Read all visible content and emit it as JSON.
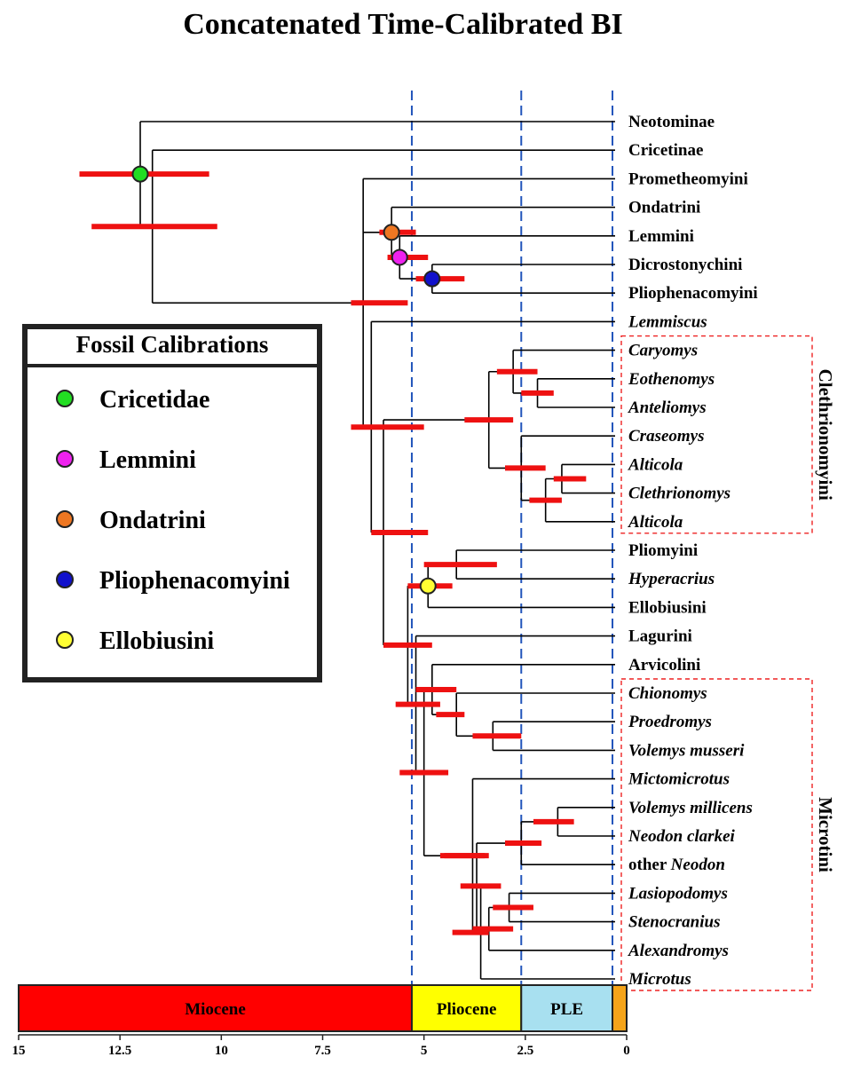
{
  "title": "Concatenated Time-Calibrated BI",
  "taxa": [
    {
      "label": "Neotominae",
      "italic": false
    },
    {
      "label": "Cricetinae",
      "italic": false
    },
    {
      "label": "Prometheomyini",
      "italic": false
    },
    {
      "label": "Ondatrini",
      "italic": false
    },
    {
      "label": "Lemmini",
      "italic": false
    },
    {
      "label": "Dicrostonychini",
      "italic": false
    },
    {
      "label": "Pliophenacomyini",
      "italic": false
    },
    {
      "label": "Lemmiscus",
      "italic": true
    },
    {
      "label": "Caryomys",
      "italic": true
    },
    {
      "label": "Eothenomys",
      "italic": true
    },
    {
      "label": "Anteliomys",
      "italic": true
    },
    {
      "label": "Craseomys",
      "italic": true
    },
    {
      "label": "Alticola",
      "italic": true
    },
    {
      "label": "Clethrionomys",
      "italic": true
    },
    {
      "label": "Alticola",
      "italic": true
    },
    {
      "label": "Pliomyini",
      "italic": false
    },
    {
      "label": "Hyperacrius",
      "italic": true
    },
    {
      "label": "Ellobiusini",
      "italic": false
    },
    {
      "label": "Lagurini",
      "italic": false
    },
    {
      "label": "Arvicolini",
      "italic": false
    },
    {
      "label": "Chionomys",
      "italic": true
    },
    {
      "label": "Proedromys",
      "italic": true
    },
    {
      "label": "Volemys musseri",
      "italic": true
    },
    {
      "label": "Mictomicrotus",
      "italic": true
    },
    {
      "label": "Volemys millicens",
      "italic": true
    },
    {
      "label": "Neodon clarkei",
      "italic": true
    },
    {
      "prefix": "other ",
      "label": "Neodon",
      "italic": true
    },
    {
      "label": "Lasiopodomys",
      "italic": true
    },
    {
      "label": "Stenocranius",
      "italic": true
    },
    {
      "label": "Alexandromys",
      "italic": true
    },
    {
      "label": "Microtus",
      "italic": true
    }
  ],
  "clades": [
    {
      "label": "Clethrionomyini",
      "first_tip": 8,
      "last_tip": 14
    },
    {
      "label": "Microtini",
      "first_tip": 20,
      "last_tip": 30
    }
  ],
  "legend": {
    "title": "Fossil Calibrations",
    "items": [
      {
        "label": "Cricetidae",
        "color": "#22dd22"
      },
      {
        "label": "Lemmini",
        "color": "#ee22ee"
      },
      {
        "label": "Ondatrini",
        "color": "#ee7722"
      },
      {
        "label": "Pliophenacomyini",
        "color": "#1111cc"
      },
      {
        "label": "Ellobiusini",
        "color": "#ffff33"
      }
    ]
  },
  "time_axis": {
    "unit": "Ma",
    "domain": [
      15,
      0
    ],
    "ticks": [
      15,
      12.5,
      10,
      7.5,
      5,
      2.5,
      0
    ],
    "tick_labels": [
      "15",
      "12.5",
      "10",
      "7.5",
      "5",
      "2.5",
      "0"
    ],
    "reference_lines_at": [
      5.3,
      2.6,
      0.35
    ]
  },
  "epochs": [
    {
      "label": "Miocene",
      "start": 15,
      "end": 5.3,
      "color": "#ff0000"
    },
    {
      "label": "Pliocene",
      "start": 5.3,
      "end": 2.6,
      "color": "#ffff00"
    },
    {
      "label": "PLE",
      "start": 2.6,
      "end": 0.35,
      "color": "#a8e0f0"
    },
    {
      "label": "",
      "start": 0.35,
      "end": 0,
      "color": "#f5a41a"
    }
  ],
  "colors": {
    "branch": "#000000",
    "hpd_bar": "#ee1111",
    "reference_line": "#2255bb",
    "clade_box": "#ee2222"
  },
  "tree": {
    "age": 12.0,
    "hpd": [
      13.5,
      10.3
    ],
    "calibration": "Cricetidae",
    "children": [
      {
        "tip": 0
      },
      {
        "age": 11.7,
        "hpd": [
          13.2,
          10.1
        ],
        "children": [
          {
            "tip": 1
          },
          {
            "age": 6.5,
            "hpd": [
              6.8,
              5.4
            ],
            "children": [
              {
                "tip": 2
              },
              {
                "age": 5.8,
                "hpd": [
                  6.1,
                  5.2
                ],
                "calibration": "Ondatrini",
                "children": [
                  {
                    "tip": 3
                  },
                  {
                    "age": 5.6,
                    "hpd": [
                      5.9,
                      4.9
                    ],
                    "calibration": "Lemmini",
                    "children": [
                      {
                        "tip": 4
                      },
                      {
                        "age": 4.8,
                        "hpd": [
                          5.2,
                          4.0
                        ],
                        "calibration": "Pliophenacomyini",
                        "children": [
                          {
                            "tip": 5
                          },
                          {
                            "tip": 6
                          }
                        ]
                      }
                    ]
                  }
                ]
              },
              {
                "age": 6.3,
                "hpd": [
                  6.8,
                  5.0
                ],
                "children": [
                  {
                    "tip": 7
                  },
                  {
                    "age": 6.0,
                    "hpd": [
                      6.3,
                      4.9
                    ],
                    "children": [
                      {
                        "age": 3.4,
                        "hpd": [
                          4.0,
                          2.8
                        ],
                        "children": [
                          {
                            "age": 2.8,
                            "hpd": [
                              3.2,
                              2.2
                            ],
                            "children": [
                              {
                                "tip": 8
                              },
                              {
                                "age": 2.2,
                                "hpd": [
                                  2.6,
                                  1.8
                                ],
                                "children": [
                                  {
                                    "tip": 9
                                  },
                                  {
                                    "tip": 10
                                  }
                                ]
                              }
                            ]
                          },
                          {
                            "age": 2.6,
                            "hpd": [
                              3.0,
                              2.0
                            ],
                            "children": [
                              {
                                "tip": 11
                              },
                              {
                                "age": 2.0,
                                "hpd": [
                                  2.4,
                                  1.6
                                ],
                                "children": [
                                  {
                                    "age": 1.6,
                                    "hpd": [
                                      1.8,
                                      1.0
                                    ],
                                    "children": [
                                      {
                                        "tip": 12
                                      },
                                      {
                                        "tip": 13
                                      }
                                    ]
                                  },
                                  {
                                    "tip": 14
                                  }
                                ]
                              }
                            ]
                          }
                        ]
                      },
                      {
                        "age": 5.4,
                        "hpd": [
                          6.0,
                          4.8
                        ],
                        "children": [
                          {
                            "age": 4.9,
                            "hpd": [
                              5.4,
                              4.3
                            ],
                            "calibration": "Ellobiusini",
                            "children": [
                              {
                                "age": 4.2,
                                "hpd": [
                                  5.0,
                                  3.2
                                ],
                                "children": [
                                  {
                                    "tip": 15
                                  },
                                  {
                                    "tip": 16
                                  }
                                ]
                              },
                              {
                                "tip": 17
                              }
                            ]
                          },
                          {
                            "age": 5.2,
                            "hpd": [
                              5.7,
                              4.6
                            ],
                            "children": [
                              {
                                "tip": 18
                              },
                              {
                                "age": 5.0,
                                "hpd": [
                                  5.6,
                                  4.4
                                ],
                                "children": [
                                  {
                                    "age": 4.8,
                                    "hpd": [
                                      5.2,
                                      4.2
                                    ],
                                    "children": [
                                      {
                                        "tip": 19
                                      },
                                      {
                                        "age": 4.2,
                                        "hpd": [
                                          4.7,
                                          4.0
                                        ],
                                        "children": [
                                          {
                                            "tip": 20
                                          },
                                          {
                                            "age": 3.3,
                                            "hpd": [
                                              3.8,
                                              2.6
                                            ],
                                            "children": [
                                              {
                                                "tip": 21
                                              },
                                              {
                                                "tip": 22
                                              }
                                            ]
                                          }
                                        ]
                                      }
                                    ]
                                  },
                                  {
                                    "age": 4.2,
                                    "hpd": [
                                      4.6,
                                      3.5
                                    ],
                                    "children": [
                                      {
                                        "age": 3.8,
                                        "hpd": [
                                          4.5,
                                          3.4
                                        ],
                                        "children": [
                                          {
                                            "tip": 23
                                          },
                                          {
                                            "age": 3.6,
                                            "hpd": [
                                              4.3,
                                              3.4
                                            ],
                                            "children": [
                                              {
                                                "age": 3.7,
                                                "hpd": [
                                                  4.1,
                                                  3.1
                                                ],
                                                "children": [
                                                  {
                                                    "age": 2.6,
                                                    "hpd": [
                                                      3.0,
                                                      2.1
                                                    ],
                                                    "children": [
                                                      {
                                                        "age": 1.7,
                                                        "hpd": [
                                                          2.3,
                                                          1.3
                                                        ],
                                                        "children": [
                                                          {
                                                            "tip": 24
                                                          },
                                                          {
                                                            "tip": 25
                                                          }
                                                        ]
                                                      },
                                                      {
                                                        "tip": 26
                                                      }
                                                    ]
                                                  },
                                                  {
                                                    "age": 3.4,
                                                    "hpd": [
                                                      3.8,
                                                      2.8
                                                    ],
                                                    "children": [
                                                      {
                                                        "age": 2.9,
                                                        "hpd": [
                                                          3.3,
                                                          2.3
                                                        ],
                                                        "children": [
                                                          {
                                                            "tip": 27
                                                          },
                                                          {
                                                            "tip": 28
                                                          }
                                                        ]
                                                      },
                                                      {
                                                        "tip": 29
                                                      }
                                                    ]
                                                  }
                                                ]
                                              },
                                              {
                                                "tip": 30
                                              }
                                            ]
                                          }
                                        ]
                                      }
                                    ]
                                  }
                                ]
                              }
                            ]
                          }
                        ]
                      }
                    ]
                  }
                ]
              }
            ]
          }
        ]
      }
    ]
  }
}
